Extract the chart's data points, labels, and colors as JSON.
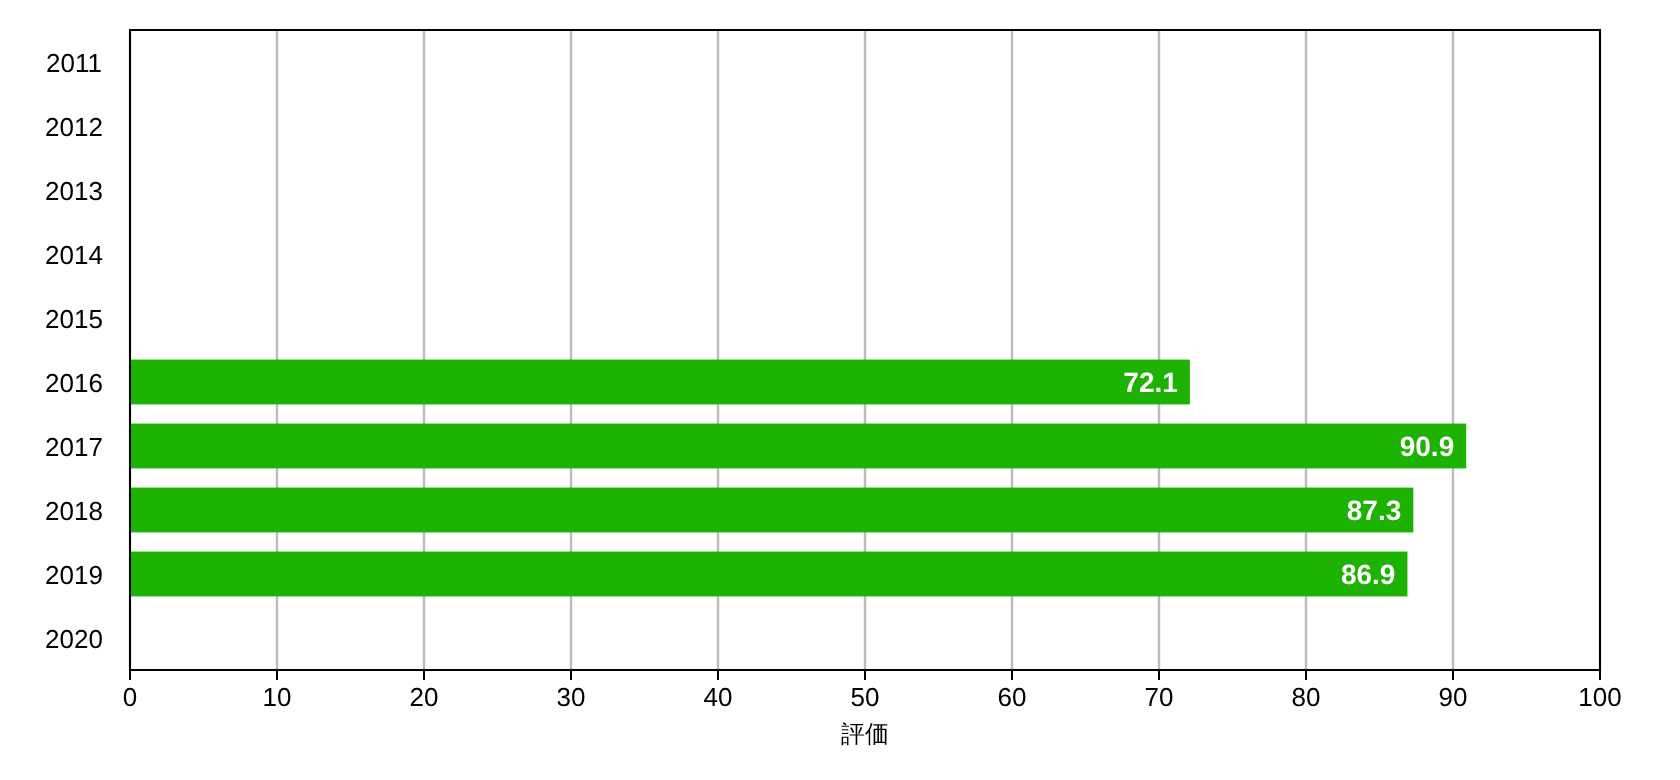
{
  "chart_data": {
    "type": "bar",
    "orientation": "horizontal",
    "categories": [
      "2011",
      "2012",
      "2013",
      "2014",
      "2015",
      "2016",
      "2017",
      "2018",
      "2019",
      "2020"
    ],
    "values": [
      null,
      null,
      null,
      null,
      null,
      72.1,
      90.9,
      87.3,
      86.9,
      null
    ],
    "color": "#1db100",
    "xlabel": "評価",
    "xlim": [
      0,
      100
    ],
    "xticks": [
      0,
      10,
      20,
      30,
      40,
      50,
      60,
      70,
      80,
      90,
      100
    ],
    "grid": "x",
    "data_labels": true
  }
}
